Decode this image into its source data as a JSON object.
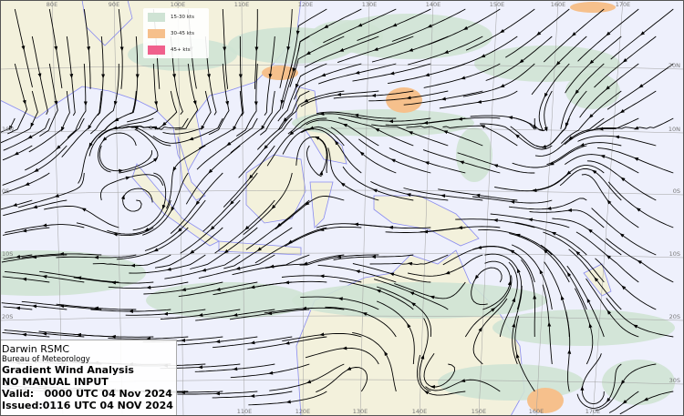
{
  "map": {
    "type": "streamline gradient wind analysis",
    "colors": {
      "ocean": "#eef0fc",
      "land": "#f3f1dc",
      "coastline": "#8a8cf0",
      "streamline": "#000000",
      "grid": "#a0a0a0"
    },
    "longitude_labels_top": [
      "80E",
      "90E",
      "100E",
      "110E",
      "120E",
      "130E",
      "140E",
      "150E",
      "160E",
      "170E"
    ],
    "longitude_labels_bottom": [
      "110E",
      "120E",
      "130E",
      "140E",
      "150E",
      "160E",
      "170E"
    ],
    "latitude_labels_right": [
      "20N",
      "10N",
      "0S",
      "10S",
      "20S",
      "30S"
    ],
    "latitude_labels_left": [
      "10N",
      "0S",
      "10S",
      "20S"
    ]
  },
  "legend": {
    "items": [
      {
        "label": "15-30 kts",
        "color": "#cfe3d4"
      },
      {
        "label": "30-45 kts",
        "color": "#f6c08c"
      },
      {
        "label": "45+ kts",
        "color": "#f0608c"
      }
    ]
  },
  "info": {
    "centre": "Darwin RSMC",
    "agency": "Bureau of Meteorology",
    "product": "Gradient Wind Analysis",
    "note": "NO MANUAL INPUT",
    "valid": "Valid:   0000 UTC 04 Nov 2024",
    "issued": "Issued:0116 UTC 04 NOV 2024"
  }
}
